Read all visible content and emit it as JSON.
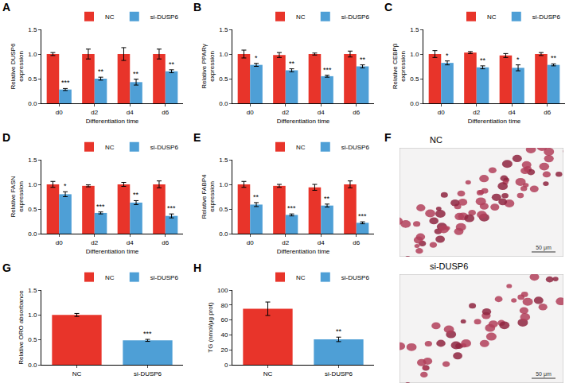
{
  "chart_data": [
    {
      "panel": "A",
      "type": "bar",
      "categories": [
        "d0",
        "d2",
        "d4",
        "d6"
      ],
      "xlabel": "Differentiation time",
      "ylabel": "Relative DUSP6 expression",
      "ylim": [
        0,
        1.5
      ],
      "yticks": [
        {
          "value": 0,
          "label": "0.0"
        },
        {
          "value": 0.5,
          "label": "0.5"
        },
        {
          "value": 1,
          "label": "1.0"
        },
        {
          "value": 1.5,
          "label": "1.5"
        }
      ],
      "grid": false,
      "legend": "top right",
      "series": [
        {
          "name": "NC",
          "color": "#e8342a",
          "values": [
            1.0,
            1.0,
            1.0,
            1.0
          ],
          "errors": [
            0.03,
            0.1,
            0.13,
            0.1
          ]
        },
        {
          "name": "si-DUSP6",
          "color": "#4e9fd6",
          "values": [
            0.28,
            0.5,
            0.43,
            0.65
          ],
          "errors": [
            0.02,
            0.03,
            0.06,
            0.03
          ],
          "significance": [
            "***",
            "**",
            "**",
            "**"
          ]
        }
      ]
    },
    {
      "panel": "B",
      "type": "bar",
      "categories": [
        "d0",
        "d2",
        "d4",
        "d6"
      ],
      "xlabel": "Differentiation time",
      "ylabel": "Relative PPARγ expression",
      "ylim": [
        0,
        1.5
      ],
      "yticks": [
        {
          "value": 0,
          "label": "0.0"
        },
        {
          "value": 0.5,
          "label": "0.5"
        },
        {
          "value": 1,
          "label": "1.0"
        },
        {
          "value": 1.5,
          "label": "1.5"
        }
      ],
      "grid": false,
      "legend": "top right",
      "series": [
        {
          "name": "NC",
          "color": "#e8342a",
          "values": [
            1.0,
            0.98,
            1.0,
            1.0
          ],
          "errors": [
            0.08,
            0.05,
            0.02,
            0.06
          ]
        },
        {
          "name": "si-DUSP6",
          "color": "#4e9fd6",
          "values": [
            0.78,
            0.67,
            0.55,
            0.75
          ],
          "errors": [
            0.03,
            0.03,
            0.02,
            0.03
          ],
          "significance": [
            "*",
            "**",
            "***",
            "**"
          ]
        }
      ]
    },
    {
      "panel": "C",
      "type": "bar",
      "categories": [
        "d0",
        "d2",
        "d4",
        "d6"
      ],
      "xlabel": "Differentiation time",
      "ylabel": "Relative CEBPβ expression",
      "ylim": [
        0,
        1.5
      ],
      "yticks": [
        {
          "value": 0,
          "label": "0.0"
        },
        {
          "value": 0.5,
          "label": "0.5"
        },
        {
          "value": 1,
          "label": "1.0"
        },
        {
          "value": 1.5,
          "label": "1.5"
        }
      ],
      "grid": false,
      "legend": "top right",
      "series": [
        {
          "name": "NC",
          "color": "#e8342a",
          "values": [
            1.0,
            1.03,
            0.97,
            1.0
          ],
          "errors": [
            0.07,
            0.02,
            0.04,
            0.03
          ]
        },
        {
          "name": "si-DUSP6",
          "color": "#4e9fd6",
          "values": [
            0.82,
            0.73,
            0.72,
            0.78
          ],
          "errors": [
            0.04,
            0.03,
            0.06,
            0.02
          ],
          "significance": [
            "*",
            "**",
            "*",
            "**"
          ]
        }
      ]
    },
    {
      "panel": "D",
      "type": "bar",
      "categories": [
        "d0",
        "d2",
        "d4",
        "d6"
      ],
      "xlabel": "Differentiation time",
      "ylabel": "Relative FASN expression",
      "ylim": [
        0,
        1.5
      ],
      "yticks": [
        {
          "value": 0,
          "label": "0.0"
        },
        {
          "value": 0.5,
          "label": "0.5"
        },
        {
          "value": 1,
          "label": "1.0"
        },
        {
          "value": 1.5,
          "label": "1.5"
        }
      ],
      "grid": false,
      "legend": "top right",
      "series": [
        {
          "name": "NC",
          "color": "#e8342a",
          "values": [
            1.0,
            0.97,
            1.0,
            1.0
          ],
          "errors": [
            0.06,
            0.02,
            0.04,
            0.07
          ]
        },
        {
          "name": "si-DUSP6",
          "color": "#4e9fd6",
          "values": [
            0.8,
            0.42,
            0.63,
            0.36
          ],
          "errors": [
            0.05,
            0.02,
            0.04,
            0.04
          ],
          "significance": [
            "*",
            "***",
            "**",
            "***"
          ]
        }
      ]
    },
    {
      "panel": "E",
      "type": "bar",
      "categories": [
        "d0",
        "d2",
        "d4",
        "d6"
      ],
      "xlabel": "Differentiation time",
      "ylabel": "Relative FABP4 expression",
      "ylim": [
        0,
        1.5
      ],
      "yticks": [
        {
          "value": 0,
          "label": "0.0"
        },
        {
          "value": 0.5,
          "label": "0.5"
        },
        {
          "value": 1,
          "label": "1.0"
        },
        {
          "value": 1.5,
          "label": "1.5"
        }
      ],
      "grid": false,
      "legend": "top right",
      "series": [
        {
          "name": "NC",
          "color": "#e8342a",
          "values": [
            1.0,
            0.97,
            0.94,
            1.0
          ],
          "errors": [
            0.06,
            0.03,
            0.06,
            0.07
          ]
        },
        {
          "name": "si-DUSP6",
          "color": "#4e9fd6",
          "values": [
            0.59,
            0.38,
            0.57,
            0.22
          ],
          "errors": [
            0.04,
            0.02,
            0.03,
            0.02
          ],
          "significance": [
            "**",
            "***",
            "**",
            "***"
          ]
        }
      ]
    },
    {
      "panel": "F",
      "type": "image",
      "images": [
        {
          "label": "NC",
          "scale_bar": "50 μm"
        },
        {
          "label": "si-DUSP6",
          "scale_bar": "50 μm"
        }
      ]
    },
    {
      "panel": "G",
      "type": "bar",
      "categories": [
        "NC",
        "si-DUSP6"
      ],
      "ylabel": "Relative ORO absorbance",
      "ylim": [
        0,
        1.5
      ],
      "yticks": [
        {
          "value": 0,
          "label": "0.0"
        },
        {
          "value": 0.5,
          "label": "0.5"
        },
        {
          "value": 1,
          "label": "1.0"
        },
        {
          "value": 1.5,
          "label": "1.5"
        }
      ],
      "grid": false,
      "legend": "top right",
      "series": [
        {
          "name": "NC",
          "color": "#e8342a",
          "values": [
            1.0,
            null
          ],
          "errors": [
            0.03,
            null
          ]
        },
        {
          "name": "si-DUSP6",
          "color": "#4e9fd6",
          "values": [
            null,
            0.49
          ],
          "errors": [
            null,
            0.02
          ],
          "significance": [
            null,
            "***"
          ]
        }
      ]
    },
    {
      "panel": "H",
      "type": "bar",
      "categories": [
        "NC",
        "si-DUSP6"
      ],
      "ylabel": "TG (nmol/μg prot)",
      "ylim": [
        0,
        100
      ],
      "yticks": [
        0,
        20,
        40,
        60,
        80,
        100
      ],
      "grid": false,
      "legend": "top right",
      "series": [
        {
          "name": "NC",
          "color": "#e8342a",
          "values": [
            75,
            null
          ],
          "errors": [
            9,
            null
          ]
        },
        {
          "name": "si-DUSP6",
          "color": "#4e9fd6",
          "values": [
            null,
            34
          ],
          "errors": [
            null,
            3
          ],
          "significance": [
            null,
            "**"
          ]
        }
      ]
    }
  ]
}
